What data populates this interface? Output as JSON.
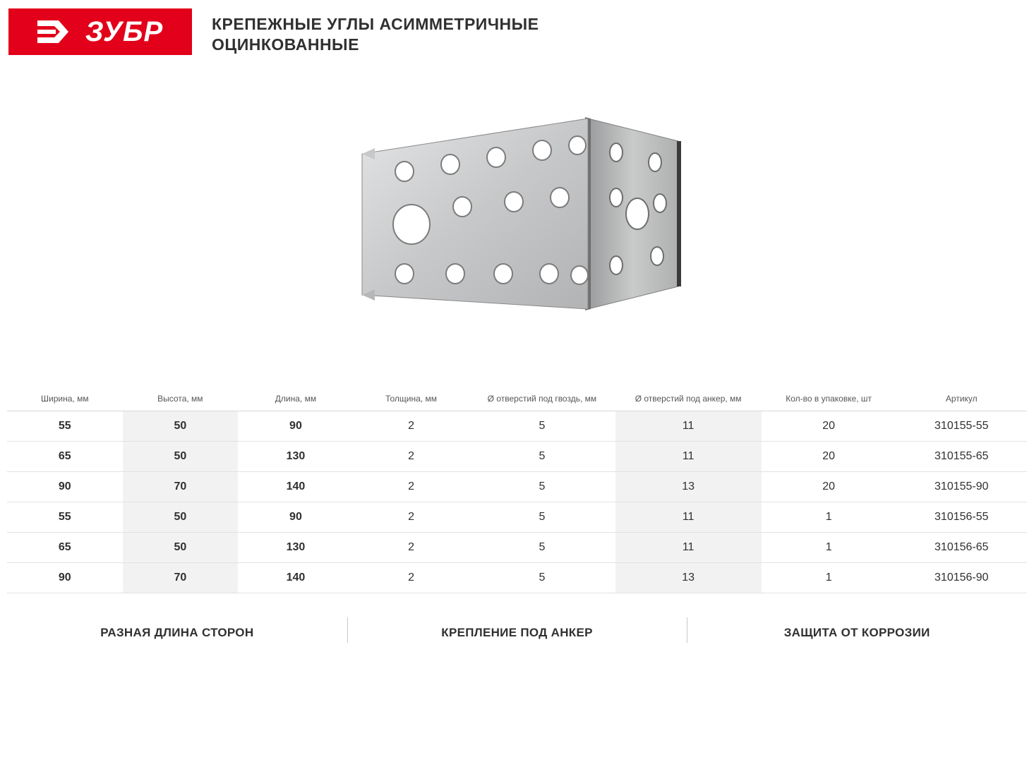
{
  "brand": {
    "name": "ЗУБР",
    "logo_bg": "#e2001a",
    "logo_fg": "#ffffff"
  },
  "title": {
    "line1": "КРЕПЕЖНЫЕ УГЛЫ АСИММЕТРИЧНЫЕ",
    "line2": "ОЦИНКОВАННЫЕ"
  },
  "product_illustration": {
    "type": "angle-bracket",
    "metal_light": "#d6d7d9",
    "metal_mid": "#bcbdbe",
    "metal_dark": "#8f9091",
    "hole_fill": "#ffffff",
    "hole_stroke": "#8a8a8a"
  },
  "table": {
    "columns": [
      "Ширина, мм",
      "Высота, мм",
      "Длина, мм",
      "Толщина, мм",
      "Ø отверстий под гвоздь, мм",
      "Ø отверстий под анкер, мм",
      "Кол-во в упаковке, шт",
      "Артикул"
    ],
    "col_widths": [
      "150px",
      "150px",
      "150px",
      "150px",
      "190px",
      "190px",
      "175px",
      "170px"
    ],
    "bold_cols": [
      0,
      1,
      2
    ],
    "shade_cols": [
      1,
      5
    ],
    "rows": [
      [
        "55",
        "50",
        "90",
        "2",
        "5",
        "11",
        "20",
        "310155-55"
      ],
      [
        "65",
        "50",
        "130",
        "2",
        "5",
        "11",
        "20",
        "310155-65"
      ],
      [
        "90",
        "70",
        "140",
        "2",
        "5",
        "13",
        "20",
        "310155-90"
      ],
      [
        "55",
        "50",
        "90",
        "2",
        "5",
        "11",
        "1",
        "310156-55"
      ],
      [
        "65",
        "50",
        "130",
        "2",
        "5",
        "11",
        "1",
        "310156-65"
      ],
      [
        "90",
        "70",
        "140",
        "2",
        "5",
        "13",
        "1",
        "310156-90"
      ]
    ]
  },
  "features": [
    "РАЗНАЯ ДЛИНА СТОРОН",
    "КРЕПЛЕНИЕ ПОД АНКЕР",
    "ЗАЩИТА ОТ КОРРОЗИИ"
  ]
}
